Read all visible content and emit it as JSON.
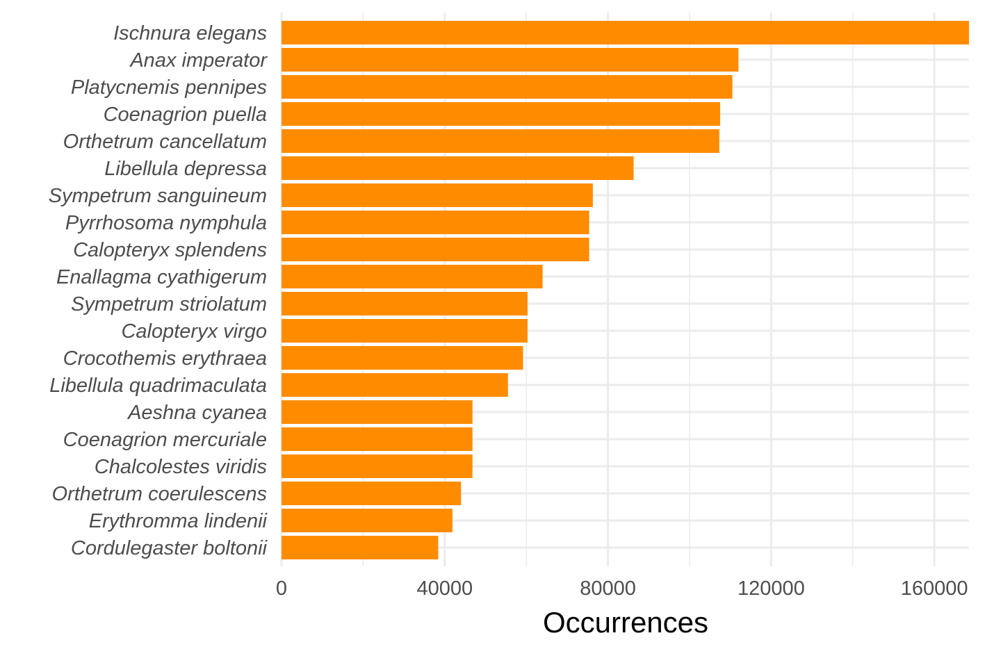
{
  "chart_data": {
    "type": "bar",
    "orientation": "horizontal",
    "title": "",
    "xlabel": "Occurrences",
    "ylabel": "",
    "xlim": [
      0,
      168500
    ],
    "xticks": [
      0,
      40000,
      80000,
      120000,
      160000
    ],
    "xtick_labels": [
      "0",
      "40000",
      "80000",
      "120000",
      "160000"
    ],
    "grid": true,
    "legend": "none",
    "bar_color": "#FF8C00",
    "grid_color": "#EBEBEB",
    "categories": [
      "Ischnura elegans",
      "Anax imperator",
      "Platycnemis pennipes",
      "Coenagrion puella",
      "Orthetrum cancellatum",
      "Libellula depressa",
      "Sympetrum sanguineum",
      "Pyrrhosoma nymphula",
      "Calopteryx splendens",
      "Enallagma cyathigerum",
      "Sympetrum striolatum",
      "Calopteryx virgo",
      "Crocothemis erythraea",
      "Libellula quadrimaculata",
      "Aeshna cyanea",
      "Coenagrion mercuriale",
      "Chalcolestes viridis",
      "Orthetrum coerulescens",
      "Erythromma lindenii",
      "Cordulegaster boltonii"
    ],
    "values": [
      168500,
      112000,
      110500,
      107500,
      107300,
      86300,
      76300,
      75400,
      75400,
      64000,
      60300,
      60300,
      59200,
      55500,
      46800,
      46800,
      46800,
      44000,
      41900,
      38400
    ]
  }
}
